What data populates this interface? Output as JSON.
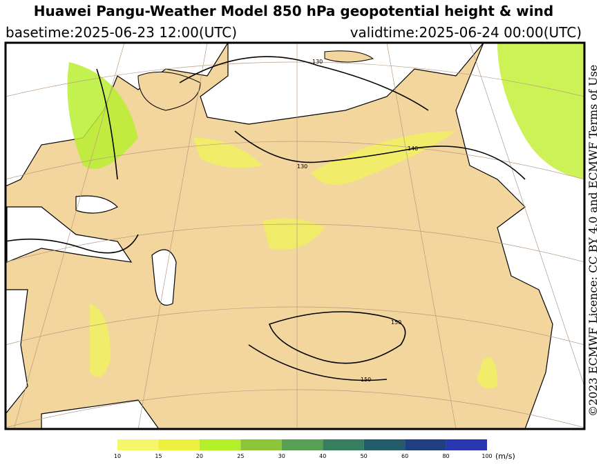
{
  "header": {
    "title": "Huawei Pangu-Weather Model 850 hPa geopotential height & wind",
    "basetime": "basetime:2025-06-23 12:00(UTC)",
    "validtime": "validtime:2025-06-24 00:00(UTC)"
  },
  "side_text": "©2023 ECMWF Licence: CC BY 4.0 and ECMWF Terms of Use",
  "contour_labels": [
    "130",
    "130",
    "140",
    "150",
    "150"
  ],
  "colorbar": {
    "ticks": [
      10,
      15,
      20,
      25,
      30,
      40,
      50,
      60,
      80,
      100
    ],
    "colors": [
      "#f6f66a",
      "#eef040",
      "#b4f02a",
      "#8cc43a",
      "#5aa054",
      "#357e5e",
      "#245c6c",
      "#1e3f80",
      "#2a38b0"
    ],
    "unit": "(m/s)"
  }
}
